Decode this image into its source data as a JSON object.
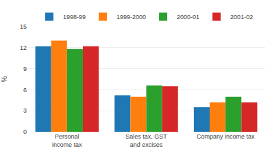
{
  "chart_data": {
    "type": "bar",
    "categories": [
      "Personal income tax",
      "Sales tax, GST and excises",
      "Company income tax"
    ],
    "series": [
      {
        "name": "1998-99",
        "values": [
          12.2,
          5.2,
          3.5
        ]
      },
      {
        "name": "1999-2000",
        "values": [
          13.0,
          5.0,
          4.2
        ]
      },
      {
        "name": "2000-01",
        "values": [
          11.8,
          6.6,
          5.0
        ]
      },
      {
        "name": "2001-02",
        "values": [
          12.2,
          6.5,
          4.2
        ]
      }
    ],
    "ylabel": "%",
    "ylim": [
      0,
      15
    ],
    "yticks": [
      0,
      3,
      6,
      9,
      12,
      15
    ],
    "grid": true,
    "legend": "top"
  }
}
